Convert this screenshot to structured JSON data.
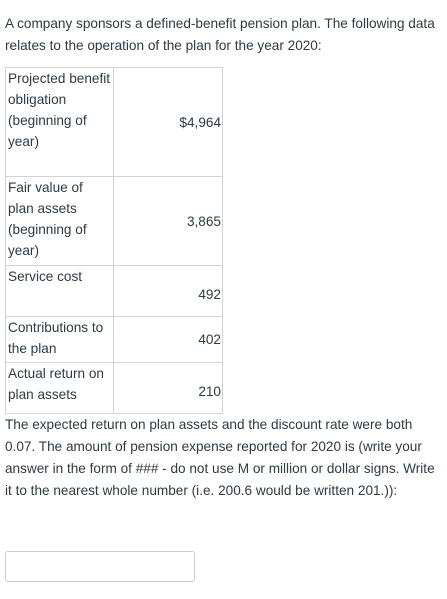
{
  "intro": {
    "text": "A company sponsors a defined-benefit pension plan.  The following data relates to the operation of the plan for the year 2020:"
  },
  "table": {
    "rows": [
      {
        "label": "Projected benefit obligation (beginning of year)",
        "value": "$4,964"
      },
      {
        "label": "Fair value of plan assets (beginning of year)",
        "value": "3,865"
      },
      {
        "label": "Service cost",
        "value": "492"
      },
      {
        "label": "Contributions to the plan",
        "value": "402"
      },
      {
        "label": "Actual return on plan assets",
        "value": "210"
      }
    ]
  },
  "question": {
    "text": "The expected return on plan assets and the discount rate were both 0.07. The amount of pension expense reported for 2020 is (write your answer in the form of ### - do not use M or million or dollar signs. Write it to the nearest whole number (i.e. 200.6 would be written 201.)):"
  },
  "answer": {
    "value": "",
    "placeholder": ""
  }
}
